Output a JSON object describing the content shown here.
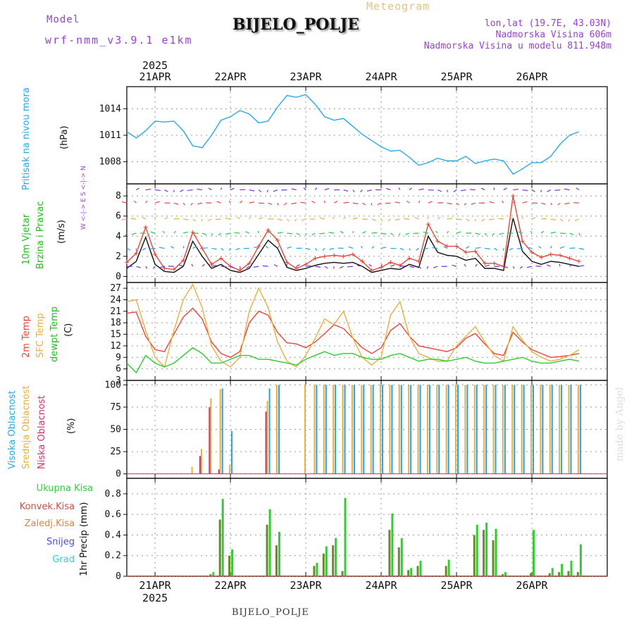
{
  "header": {
    "model_label": "Model",
    "model_run": "wrf-nmm_v3.9.1 e1km",
    "station": "BIJELO_POLJE",
    "meteogram": "Meteogram",
    "lonlat": "lon,lat (19.7E, 43.03N)",
    "altitude": "Nadmorska Visina 606m",
    "model_altitude": "Nadmorska Visina u modelu 811.948m"
  },
  "footer": {
    "station": "BIJELO_POLJE",
    "credit": "made by Angel"
  },
  "axis": {
    "year": "2025",
    "days": [
      "21APR",
      "22APR",
      "23APR",
      "24APR",
      "25APR",
      "26APR"
    ],
    "start_hour": 0,
    "end_hour": 144
  },
  "labels": {
    "pressure": [
      "Pritisak na nivou mora",
      "(hPa)"
    ],
    "wind": [
      "10m Vjetar",
      "Brzina i Pravac",
      "(m/s)"
    ],
    "compass": "W <-|-> E   S <-|-> N",
    "temp": [
      "2m Temp",
      "SFC Temp",
      "dewpt Temp",
      "(C)"
    ],
    "cloud": [
      "Visoka Oblacnost",
      "Srednja Oblacnost",
      "Niska Oblacnost",
      "(%)"
    ],
    "precip_legend": [
      "Ukupna Kisa",
      "Konvek.Kisa",
      "Zaledj.Kisa",
      "Snijeg",
      "Grad"
    ],
    "precip_unit": "1hr Precip (mm)"
  },
  "colors": {
    "pressure": "#2aa7e6",
    "temp2m": "#e8463a",
    "sfc": "#e6b040",
    "dew": "#2ecc2e",
    "cloud_high": "#2a9fe6",
    "cloud_mid": "#e6b040",
    "cloud_low": "#d0336a",
    "precip_total": "#33cc33",
    "precip_conv": "#d64a3a",
    "precip_frz": "#e6823a",
    "snow": "#4b4bdc",
    "hail": "#33cccc",
    "wind": "#111111",
    "gust": "#e8463a"
  },
  "chart_data": [
    {
      "type": "line",
      "title": "",
      "ylabel": "(hPa)",
      "ylim": [
        1005.5,
        1016.5
      ],
      "yticks": [
        "1008",
        "1011",
        "1014"
      ],
      "x": [
        -9,
        -6,
        -3,
        0,
        3,
        6,
        9,
        12,
        15,
        18,
        21,
        24,
        27,
        30,
        33,
        36,
        39,
        42,
        45,
        48,
        51,
        54,
        57,
        60,
        63,
        66,
        69,
        72,
        75,
        78,
        81,
        84,
        87,
        90,
        93,
        96,
        99,
        102,
        105,
        108,
        111,
        114,
        117,
        120,
        123,
        126,
        129,
        132,
        135
      ],
      "series": [
        {
          "values": [
            1011.4,
            1010.7,
            1011.5,
            1012.6,
            1012.5,
            1012.6,
            1011.5,
            1009.8,
            1009.6,
            1011.0,
            1012.7,
            1013.1,
            1013.8,
            1013.4,
            1012.4,
            1012.6,
            1014.2,
            1015.5,
            1015.3,
            1015.6,
            1014.5,
            1013.1,
            1012.7,
            1012.9,
            1012.0,
            1011.1,
            1010.4,
            1009.7,
            1009.2,
            1009.3,
            1008.5,
            1007.6,
            1007.9,
            1008.4,
            1008.1,
            1008.1,
            1008.6,
            1007.8,
            1008.1,
            1008.3,
            1008.1,
            1006.6,
            1007.2,
            1007.9,
            1007.9,
            1008.6,
            1010.0,
            1011.0,
            1011.4
          ]
        }
      ]
    },
    {
      "type": "line",
      "title": "",
      "ylabel": "(m/s)",
      "ylim": [
        -0.6,
        9.2
      ],
      "yticks": [
        "0",
        "2",
        "4",
        "6",
        "8"
      ],
      "x": [
        -9,
        -6,
        -3,
        0,
        3,
        6,
        9,
        12,
        15,
        18,
        21,
        24,
        27,
        30,
        33,
        36,
        39,
        42,
        45,
        48,
        51,
        54,
        57,
        60,
        63,
        66,
        69,
        72,
        75,
        78,
        81,
        84,
        87,
        90,
        93,
        96,
        99,
        102,
        105,
        108,
        111,
        114,
        117,
        120,
        123,
        126,
        129,
        132,
        135
      ],
      "series": [
        {
          "name": "wind",
          "values": [
            0.8,
            1.5,
            3.9,
            1.2,
            0.5,
            0.4,
            1.0,
            3.5,
            2.0,
            0.8,
            1.2,
            0.6,
            0.4,
            0.8,
            2.2,
            3.6,
            2.8,
            0.9,
            0.6,
            0.8,
            1.1,
            1.3,
            1.4,
            1.3,
            1.4,
            1.0,
            0.4,
            0.6,
            0.8,
            0.7,
            1.2,
            0.9,
            4.0,
            2.4,
            2.1,
            2.0,
            1.6,
            1.8,
            0.8,
            0.8,
            0.6,
            5.8,
            2.5,
            1.5,
            1.2,
            1.5,
            1.4,
            1.2,
            1.0
          ]
        },
        {
          "name": "gust",
          "values": [
            1.4,
            2.3,
            4.9,
            2.2,
            0.8,
            0.7,
            1.6,
            4.4,
            2.8,
            1.2,
            1.8,
            1.0,
            0.6,
            1.3,
            3.0,
            4.6,
            3.6,
            1.4,
            0.8,
            1.2,
            1.8,
            2.0,
            2.1,
            2.0,
            2.2,
            1.5,
            0.6,
            0.9,
            1.4,
            1.1,
            1.8,
            1.5,
            5.2,
            3.5,
            3.0,
            3.0,
            2.4,
            2.5,
            1.3,
            1.3,
            1.0,
            8.0,
            3.5,
            2.4,
            1.9,
            2.2,
            2.1,
            1.8,
            1.5
          ]
        }
      ]
    },
    {
      "type": "line",
      "title": "",
      "ylabel": "(C)",
      "ylim": [
        3,
        28.5
      ],
      "yticks": [
        "3",
        "6",
        "9",
        "12",
        "15",
        "18",
        "21",
        "24",
        "27"
      ],
      "x": [
        -9,
        -6,
        -3,
        0,
        3,
        6,
        9,
        12,
        15,
        18,
        21,
        24,
        27,
        30,
        33,
        36,
        39,
        42,
        45,
        48,
        51,
        54,
        57,
        60,
        63,
        66,
        69,
        72,
        75,
        78,
        81,
        84,
        87,
        90,
        93,
        96,
        99,
        102,
        105,
        108,
        111,
        114,
        117,
        120,
        123,
        126,
        129,
        132,
        135
      ],
      "series": [
        {
          "name": "2m",
          "values": [
            20.5,
            20.8,
            14.5,
            11.0,
            10.5,
            15.0,
            19.5,
            21.8,
            19.0,
            13.0,
            10.0,
            9.0,
            10.5,
            18.0,
            21.0,
            20.0,
            15.5,
            12.8,
            12.5,
            11.5,
            13.0,
            15.2,
            17.5,
            16.5,
            14.0,
            11.5,
            10.0,
            11.5,
            16.0,
            17.8,
            14.5,
            12.0,
            11.5,
            11.0,
            10.5,
            11.5,
            14.0,
            15.2,
            12.5,
            10.0,
            9.5,
            15.5,
            13.0,
            11.0,
            10.0,
            9.0,
            9.2,
            9.5,
            10.0
          ]
        },
        {
          "name": "sfc",
          "values": [
            23.5,
            24.0,
            16.0,
            9.0,
            6.5,
            16.0,
            24.0,
            28.0,
            22.0,
            12.0,
            8.0,
            6.5,
            9.0,
            21.0,
            27.0,
            22.0,
            13.0,
            8.0,
            6.5,
            9.5,
            14.0,
            19.0,
            17.5,
            21.0,
            14.0,
            9.0,
            7.0,
            9.0,
            20.0,
            23.5,
            14.5,
            10.0,
            9.0,
            8.0,
            8.0,
            12.0,
            14.5,
            17.0,
            13.0,
            9.5,
            8.0,
            17.0,
            13.5,
            10.5,
            9.0,
            8.0,
            8.5,
            9.5,
            11.0
          ]
        },
        {
          "name": "dew",
          "values": [
            7.5,
            5.0,
            9.5,
            7.5,
            6.5,
            7.5,
            9.5,
            11.5,
            10.0,
            7.5,
            7.5,
            8.5,
            9.5,
            9.5,
            8.5,
            8.5,
            8.0,
            7.5,
            7.0,
            8.5,
            9.5,
            10.5,
            9.5,
            10.0,
            10.0,
            9.0,
            8.5,
            8.5,
            9.5,
            10.0,
            9.0,
            8.0,
            8.5,
            8.5,
            8.0,
            8.5,
            9.0,
            8.0,
            7.5,
            7.5,
            8.0,
            8.5,
            9.0,
            8.0,
            7.5,
            7.5,
            8.0,
            8.5,
            8.0
          ]
        }
      ]
    },
    {
      "type": "bar",
      "title": "",
      "ylabel": "(%)",
      "ylim": [
        -5,
        105
      ],
      "yticks": [
        "0",
        "25",
        "50",
        "75",
        "100"
      ],
      "x": [
        -9,
        -6,
        -3,
        0,
        3,
        6,
        9,
        12,
        15,
        18,
        21,
        24,
        27,
        30,
        33,
        36,
        39,
        42,
        45,
        48,
        51,
        54,
        57,
        60,
        63,
        66,
        69,
        72,
        75,
        78,
        81,
        84,
        87,
        90,
        93,
        96,
        99,
        102,
        105,
        108,
        111,
        114,
        117,
        120,
        123,
        126,
        129,
        132,
        135
      ],
      "series": [
        {
          "name": "high",
          "values": [
            0,
            0,
            0,
            0,
            0,
            0,
            0,
            0,
            0,
            0,
            96,
            48,
            0,
            0,
            0,
            96,
            100,
            0,
            0,
            0,
            100,
            100,
            100,
            100,
            100,
            100,
            100,
            100,
            100,
            100,
            100,
            100,
            100,
            100,
            100,
            100,
            100,
            100,
            100,
            100,
            100,
            100,
            100,
            100,
            100,
            100,
            100,
            100,
            100
          ]
        },
        {
          "name": "mid",
          "values": [
            0,
            0,
            0,
            0,
            0,
            0,
            0,
            8,
            28,
            85,
            95,
            10,
            0,
            0,
            0,
            82,
            100,
            0,
            0,
            100,
            100,
            100,
            100,
            100,
            100,
            100,
            100,
            100,
            100,
            100,
            100,
            100,
            100,
            100,
            100,
            100,
            100,
            100,
            100,
            100,
            100,
            100,
            100,
            100,
            100,
            100,
            100,
            100,
            100
          ]
        },
        {
          "name": "low",
          "values": [
            0,
            0,
            0,
            0,
            0,
            0,
            0,
            0,
            20,
            75,
            5,
            0,
            0,
            0,
            0,
            70,
            0,
            0,
            0,
            0,
            0,
            0,
            0,
            0,
            0,
            0,
            0,
            0,
            0,
            0,
            0,
            0,
            0,
            0,
            0,
            0,
            0,
            0,
            0,
            0,
            0,
            0,
            0,
            0,
            0,
            0,
            0,
            0,
            0
          ]
        }
      ]
    },
    {
      "type": "bar",
      "title": "",
      "ylabel": "1hr Precip (mm)",
      "ylim": [
        0,
        0.95
      ],
      "yticks": [
        "0",
        "0.2",
        "0.4",
        "0.6",
        "0.8"
      ],
      "x": [
        -9,
        -6,
        -3,
        0,
        3,
        6,
        9,
        12,
        15,
        18,
        21,
        24,
        27,
        30,
        33,
        36,
        39,
        42,
        45,
        48,
        51,
        54,
        57,
        60,
        63,
        66,
        69,
        72,
        75,
        78,
        81,
        84,
        87,
        90,
        93,
        96,
        99,
        102,
        105,
        108,
        111,
        114,
        117,
        120,
        123,
        126,
        129,
        132,
        135
      ],
      "series": [
        {
          "name": "total",
          "values": [
            0,
            0,
            0,
            0,
            0,
            0,
            0,
            0,
            0,
            0.04,
            0.75,
            0.26,
            0,
            0,
            0,
            0.65,
            0.43,
            0,
            0,
            0,
            0.13,
            0.29,
            0.37,
            0.76,
            0,
            0,
            0,
            0,
            0.61,
            0.37,
            0.08,
            0.15,
            0,
            0,
            0.16,
            0,
            0,
            0.5,
            0.52,
            0.46,
            0.04,
            0,
            0,
            0.45,
            0,
            0.08,
            0.12,
            0.15,
            0.31
          ]
        },
        {
          "name": "convective",
          "values": [
            0,
            0,
            0,
            0,
            0,
            0,
            0,
            0,
            0,
            0.02,
            0.55,
            0.2,
            0,
            0,
            0,
            0.5,
            0.3,
            0,
            0,
            0,
            0.1,
            0.22,
            0.3,
            0.05,
            0,
            0,
            0,
            0,
            0.45,
            0.28,
            0.06,
            0.1,
            0,
            0,
            0.1,
            0,
            0,
            0.4,
            0.45,
            0.35,
            0.02,
            0,
            0,
            0.03,
            0,
            0.03,
            0.04,
            0.05,
            0.04
          ]
        }
      ]
    }
  ]
}
